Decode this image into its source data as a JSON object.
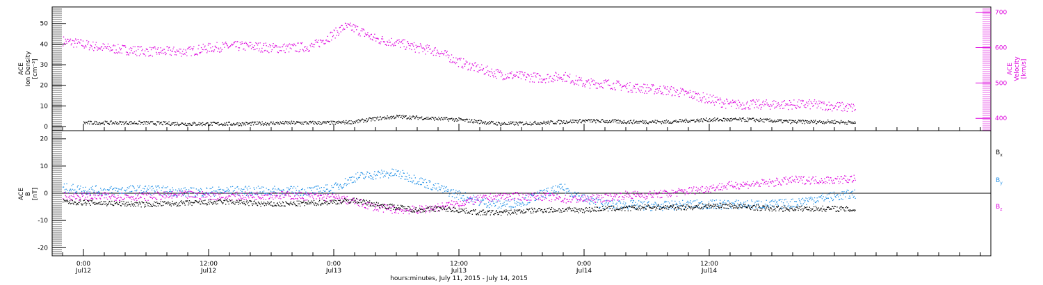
{
  "chart_data": [
    {
      "type": "scatter",
      "panel": "top",
      "y_label_left": [
        "ACE",
        "Ion Density",
        "[cm⁻³]"
      ],
      "y_label_right": [
        "ACE",
        "Velocity",
        "[km/s]"
      ],
      "y_left_ticks": [
        "0",
        "10",
        "20",
        "30",
        "40",
        "50"
      ],
      "y_left_range": [
        -2,
        58
      ],
      "y_right_ticks": [
        "400",
        "500",
        "600",
        "700"
      ],
      "y_right_range": [
        365,
        715
      ],
      "grid": false,
      "series": [
        {
          "name": "Ion Density",
          "axis": "left",
          "color": "#000000",
          "x": [
            0,
            5,
            10,
            15,
            20,
            24,
            26,
            28,
            30,
            32,
            34,
            36,
            38,
            40,
            44,
            48,
            52,
            56,
            60,
            64,
            66,
            68,
            70,
            72,
            74
          ],
          "y": [
            2,
            2,
            1.5,
            1.5,
            2,
            2,
            2.5,
            4,
            5,
            4.5,
            4,
            3.5,
            2.5,
            1.5,
            2,
            3,
            2.5,
            2.5,
            3.5,
            3.5,
            3,
            2.5,
            2.5,
            2.5,
            2
          ]
        },
        {
          "name": "Velocity",
          "axis": "right",
          "color": "#dd00dd",
          "x": [
            -2,
            0,
            2,
            4,
            6,
            8,
            10,
            12,
            14,
            16,
            18,
            20,
            22,
            24,
            25,
            26,
            27,
            28,
            30,
            32,
            34,
            36,
            38,
            40,
            42,
            44,
            46,
            48,
            50,
            52,
            54,
            56,
            58,
            60,
            62,
            64,
            66,
            68,
            70,
            72,
            74
          ],
          "y": [
            620,
            610,
            600,
            595,
            590,
            590,
            590,
            600,
            605,
            605,
            600,
            600,
            605,
            640,
            660,
            655,
            640,
            625,
            615,
            600,
            590,
            560,
            540,
            525,
            520,
            515,
            520,
            500,
            500,
            490,
            485,
            480,
            470,
            455,
            440,
            440,
            440,
            440,
            440,
            435,
            430
          ]
        }
      ]
    },
    {
      "type": "scatter",
      "panel": "bottom",
      "y_label_left": [
        "ACE",
        "B",
        "[nT]"
      ],
      "y_ticks": [
        "-20",
        "-10",
        "0",
        "10",
        "20"
      ],
      "y_range": [
        -23,
        23
      ],
      "zero_line": true,
      "grid": false,
      "series": [
        {
          "name": "Bx",
          "color": "#000000",
          "x": [
            -2,
            2,
            6,
            10,
            14,
            18,
            22,
            24,
            26,
            28,
            30,
            32,
            34,
            36,
            38,
            40,
            42,
            44,
            46,
            48,
            50,
            52,
            54,
            56,
            58,
            60,
            62,
            64,
            66,
            68,
            70,
            72,
            74
          ],
          "y": [
            -3,
            -3.5,
            -4,
            -3.5,
            -3,
            -4,
            -3.5,
            -3,
            -2.5,
            -4,
            -5,
            -6,
            -5.5,
            -6,
            -7,
            -7,
            -6.5,
            -6,
            -6,
            -6,
            -5.5,
            -5.5,
            -5,
            -5,
            -5,
            -4.5,
            -4.5,
            -5,
            -5.5,
            -5.5,
            -5.5,
            -5.5,
            -6
          ]
        },
        {
          "name": "By",
          "color": "#1f8fe6",
          "x": [
            -2,
            2,
            6,
            10,
            14,
            18,
            22,
            24,
            26,
            28,
            30,
            32,
            34,
            36,
            38,
            40,
            42,
            44,
            46,
            48,
            50,
            52,
            54,
            56,
            58,
            60,
            62,
            64,
            66,
            68,
            70,
            72,
            74
          ],
          "y": [
            2,
            1,
            1.5,
            0.5,
            1,
            1,
            1,
            2,
            6,
            7,
            7.5,
            5,
            2,
            -0.5,
            -3,
            -4,
            -3,
            0,
            2,
            -2,
            -4,
            -4,
            -4.5,
            -4.5,
            -4,
            -4,
            -4,
            -4,
            -4,
            -3.5,
            -2,
            -1,
            0
          ]
        },
        {
          "name": "Bz",
          "color": "#dd00dd",
          "x": [
            -2,
            2,
            6,
            10,
            14,
            18,
            22,
            24,
            26,
            28,
            30,
            32,
            34,
            36,
            38,
            40,
            42,
            44,
            46,
            48,
            50,
            52,
            54,
            56,
            58,
            60,
            62,
            64,
            66,
            68,
            70,
            72,
            74
          ],
          "y": [
            -1,
            -1,
            -1,
            -0.5,
            -1,
            -0.5,
            -1,
            -1.5,
            -3,
            -5,
            -6,
            -6,
            -5,
            -3.5,
            -2,
            -1,
            -1,
            -1,
            -2,
            -2,
            -1.5,
            -0.5,
            -0.5,
            0,
            1,
            2,
            3,
            3.5,
            4,
            5,
            5,
            5,
            5.5
          ]
        }
      ]
    }
  ],
  "x_axis": {
    "range_hours": [
      -3,
      87
    ],
    "ticks": [
      {
        "hour": 0,
        "time": "0:00",
        "date": "Jul12"
      },
      {
        "hour": 12,
        "time": "12:00",
        "date": "Jul12"
      },
      {
        "hour": 24,
        "time": "0:00",
        "date": "Jul13"
      },
      {
        "hour": 36,
        "time": "12:00",
        "date": "Jul13"
      },
      {
        "hour": 48,
        "time": "0:00",
        "date": "Jul14"
      },
      {
        "hour": 60,
        "time": "12:00",
        "date": "Jul14"
      }
    ],
    "title": "hours:minutes, July 11, 2015 - July 14, 2015"
  },
  "legend": [
    {
      "label": "B",
      "sub": "x",
      "color": "#000000"
    },
    {
      "label": "B",
      "sub": "y",
      "color": "#1f8fe6"
    },
    {
      "label": "B",
      "sub": "z",
      "color": "#dd00dd"
    }
  ]
}
